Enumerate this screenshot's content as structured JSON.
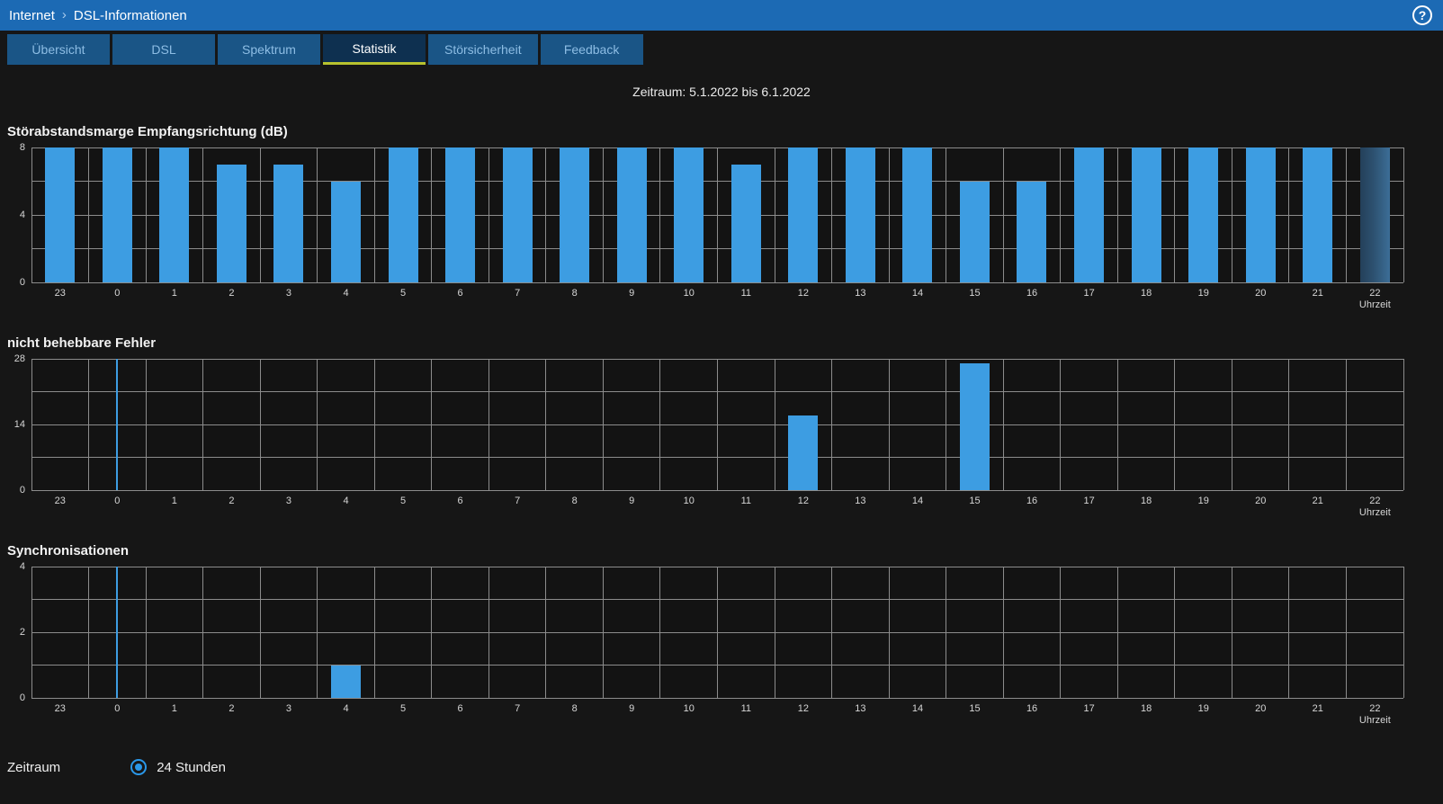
{
  "header": {
    "breadcrumb": {
      "section": "Internet",
      "separator": "›",
      "page": "DSL-Informationen"
    },
    "help": "?"
  },
  "tabs": [
    {
      "label": "Übersicht"
    },
    {
      "label": "DSL"
    },
    {
      "label": "Spektrum"
    },
    {
      "label": "Statistik"
    },
    {
      "label": "Störsicherheit"
    },
    {
      "label": "Feedback"
    }
  ],
  "active_tab": "Statistik",
  "period": "Zeitraum: 5.1.2022 bis 6.1.2022",
  "footer": {
    "label": "Zeitraum",
    "option": "24 Stunden",
    "selected": true
  },
  "colors": {
    "background": "#161616",
    "header_blue": "#1c6ab4",
    "tab_blue": "#1a5586",
    "active_underline": "#b8c22e",
    "bar_blue": "#3d9de2",
    "grid": "#8c8c8c"
  },
  "chart_data": [
    {
      "type": "bar",
      "title": "Störabstandsmarge Empfangsrichtung (dB)",
      "xlabel": "Uhrzeit",
      "categories": [
        "23",
        "0",
        "1",
        "2",
        "3",
        "4",
        "5",
        "6",
        "7",
        "8",
        "9",
        "10",
        "11",
        "12",
        "13",
        "14",
        "15",
        "16",
        "17",
        "18",
        "19",
        "20",
        "21",
        "22"
      ],
      "values": [
        8,
        8,
        8,
        7,
        7,
        6,
        8,
        8,
        8,
        8,
        8,
        8,
        7,
        8,
        8,
        8,
        6,
        6,
        8,
        8,
        8,
        8,
        8,
        8
      ],
      "ymax": 8,
      "yticks": [
        0,
        4,
        8
      ],
      "grid_divisions": 4,
      "faded_last": true
    },
    {
      "type": "bar",
      "title": "nicht behebbare Fehler",
      "xlabel": "Uhrzeit",
      "categories": [
        "23",
        "0",
        "1",
        "2",
        "3",
        "4",
        "5",
        "6",
        "7",
        "8",
        "9",
        "10",
        "11",
        "12",
        "13",
        "14",
        "15",
        "16",
        "17",
        "18",
        "19",
        "20",
        "21",
        "22"
      ],
      "values": [
        0,
        0,
        0,
        0,
        0,
        0,
        0,
        0,
        0,
        0,
        0,
        0,
        0,
        16,
        0,
        0,
        27,
        0,
        0,
        0,
        0,
        0,
        0,
        0
      ],
      "ymax": 28,
      "yticks": [
        0,
        14,
        28
      ],
      "grid_divisions": 4,
      "marker_category": "0"
    },
    {
      "type": "bar",
      "title": "Synchronisationen",
      "xlabel": "Uhrzeit",
      "categories": [
        "23",
        "0",
        "1",
        "2",
        "3",
        "4",
        "5",
        "6",
        "7",
        "8",
        "9",
        "10",
        "11",
        "12",
        "13",
        "14",
        "15",
        "16",
        "17",
        "18",
        "19",
        "20",
        "21",
        "22"
      ],
      "values": [
        0,
        0,
        0,
        0,
        0,
        1,
        0,
        0,
        0,
        0,
        0,
        0,
        0,
        0,
        0,
        0,
        0,
        0,
        0,
        0,
        0,
        0,
        0,
        0
      ],
      "ymax": 4,
      "yticks": [
        0,
        2,
        4
      ],
      "grid_divisions": 4,
      "marker_category": "0"
    }
  ]
}
